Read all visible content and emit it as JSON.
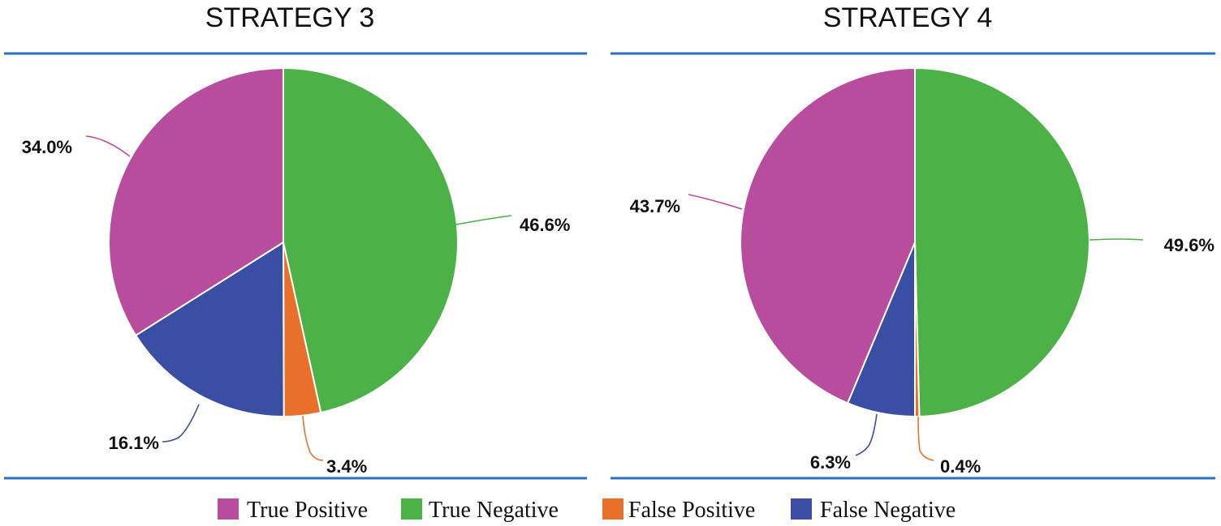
{
  "chart_data": [
    {
      "type": "pie",
      "title": "STRATEGY 3",
      "start_angle_deg": 0,
      "slices": [
        {
          "label": "True Negative",
          "value": 46.6,
          "display": "46.6%",
          "color": "#4cb147"
        },
        {
          "label": "False Positive",
          "value": 3.4,
          "display": "3.4%",
          "color": "#e8702a"
        },
        {
          "label": "False Negative",
          "value": 16.1,
          "display": "16.1%",
          "color": "#3a4fa3"
        },
        {
          "label": "True Positive",
          "value": 34.0,
          "display": "34.0%",
          "color": "#b84d9e"
        }
      ]
    },
    {
      "type": "pie",
      "title": "STRATEGY 4",
      "start_angle_deg": 0,
      "slices": [
        {
          "label": "True Negative",
          "value": 49.6,
          "display": "49.6%",
          "color": "#4cb147"
        },
        {
          "label": "False Positive",
          "value": 0.4,
          "display": "0.4%",
          "color": "#e8702a"
        },
        {
          "label": "False Negative",
          "value": 6.3,
          "display": "6.3%",
          "color": "#3a4fa3"
        },
        {
          "label": "True Positive",
          "value": 43.7,
          "display": "43.7%",
          "color": "#b84d9e"
        }
      ]
    }
  ],
  "legend": [
    {
      "label": "True Positive",
      "color": "#b84d9e"
    },
    {
      "label": "True Negative",
      "color": "#4cb147"
    },
    {
      "label": "False Positive",
      "color": "#e8702a"
    },
    {
      "label": "False Negative",
      "color": "#3a4fa3"
    }
  ]
}
